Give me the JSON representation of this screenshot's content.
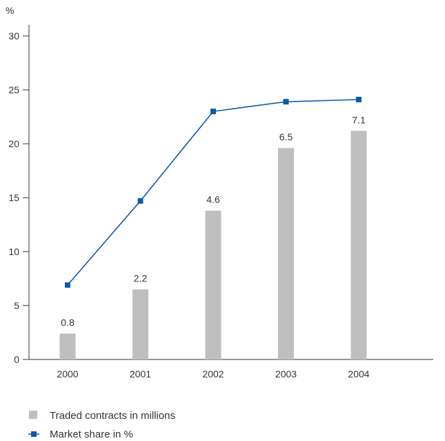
{
  "chart_data": {
    "type": "bar",
    "y_unit_label": "%",
    "categories": [
      "2000",
      "2001",
      "2002",
      "2003",
      "2004"
    ],
    "ylim": [
      0,
      30
    ],
    "yticks": [
      0,
      5,
      10,
      15,
      20,
      25,
      30
    ],
    "grid": false,
    "legend_position": "bottom-left",
    "series": [
      {
        "name": "Traded contracts in millions",
        "type": "bar",
        "plotted_values": [
          2.4,
          6.5,
          13.8,
          19.6,
          21.2
        ],
        "data_labels": [
          "0.8",
          "2.2",
          "4.6",
          "6.5",
          "7.1"
        ],
        "color": "#bfbfbf"
      },
      {
        "name": "Market share in %",
        "type": "line",
        "values": [
          6.9,
          14.7,
          23.0,
          23.9,
          24.1
        ],
        "color": "#0d5aa7"
      }
    ]
  }
}
